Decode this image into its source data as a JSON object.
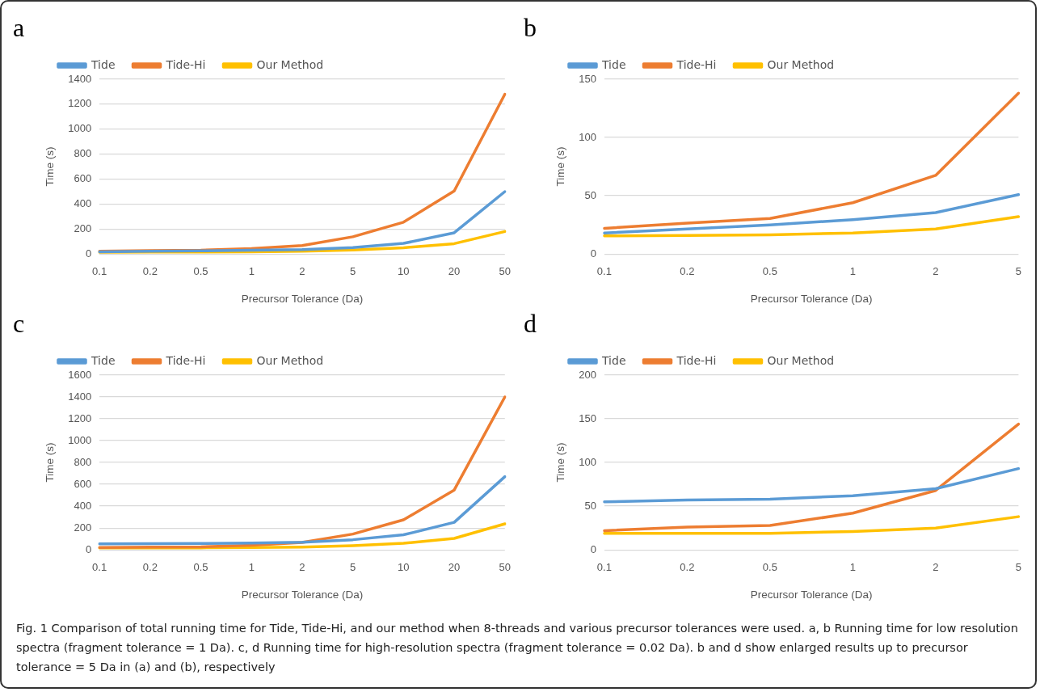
{
  "chart_data": [
    {
      "type": "line",
      "title": "a",
      "xlabel": "Precursor Tolerance (Da)",
      "ylabel": "Time (s)",
      "categories": [
        "0.1",
        "0.2",
        "0.5",
        "1",
        "2",
        "5",
        "10",
        "20",
        "50"
      ],
      "series": [
        {
          "name": "Tide",
          "color": "#5b9bd5",
          "values": [
            18,
            22,
            25,
            30,
            36,
            51,
            85,
            170,
            500
          ]
        },
        {
          "name": "Tide-Hi",
          "color": "#ed7d31",
          "values": [
            22,
            27,
            31,
            44,
            68,
            138,
            255,
            505,
            1280
          ]
        },
        {
          "name": "Our Method",
          "color": "#ffc000",
          "values": [
            15,
            16,
            16,
            18,
            22,
            32,
            50,
            83,
            180
          ]
        }
      ],
      "ylim": [
        0,
        1400
      ],
      "yticks": [
        0,
        200,
        400,
        600,
        800,
        1000,
        1200,
        1400
      ],
      "grid": "y",
      "legend": "top left",
      "marker": "none",
      "line_style": "solid"
    },
    {
      "type": "line",
      "title": "b",
      "xlabel": "Precursor Tolerance (Da)",
      "ylabel": "Time (s)",
      "categories": [
        "0.1",
        "0.2",
        "0.5",
        "1",
        "2",
        "5"
      ],
      "series": [
        {
          "name": "Tide",
          "color": "#5b9bd5",
          "values": [
            18,
            21.5,
            25,
            29.5,
            35.5,
            51
          ]
        },
        {
          "name": "Tide-Hi",
          "color": "#ed7d31",
          "values": [
            22,
            26.5,
            30.5,
            44,
            67.5,
            138
          ]
        },
        {
          "name": "Our Method",
          "color": "#ffc000",
          "values": [
            15.5,
            16,
            16.5,
            18,
            21.5,
            32
          ]
        }
      ],
      "ylim": [
        0,
        150
      ],
      "yticks": [
        0,
        50,
        100,
        150
      ],
      "grid": "y",
      "legend": "top left",
      "marker": "none",
      "line_style": "solid"
    },
    {
      "type": "line",
      "title": "c",
      "xlabel": "Precursor Tolerance (Da)",
      "ylabel": "Time (s)",
      "categories": [
        "0.1",
        "0.2",
        "0.5",
        "1",
        "2",
        "5",
        "10",
        "20",
        "50"
      ],
      "series": [
        {
          "name": "Tide",
          "color": "#5b9bd5",
          "values": [
            55,
            57,
            58,
            62,
            70,
            93,
            138,
            252,
            670
          ]
        },
        {
          "name": "Tide-Hi",
          "color": "#ed7d31",
          "values": [
            22,
            26,
            28,
            42,
            68,
            145,
            275,
            548,
            1400
          ]
        },
        {
          "name": "Our Method",
          "color": "#ffc000",
          "values": [
            18,
            19,
            19,
            21,
            25,
            38,
            60,
            105,
            238
          ]
        }
      ],
      "ylim": [
        0,
        1600
      ],
      "yticks": [
        0,
        200,
        400,
        600,
        800,
        1000,
        1200,
        1400,
        1600
      ],
      "grid": "y",
      "legend": "top left",
      "marker": "none",
      "line_style": "solid"
    },
    {
      "type": "line",
      "title": "d",
      "xlabel": "Precursor Tolerance (Da)",
      "ylabel": "Time (s)",
      "categories": [
        "0.1",
        "0.2",
        "0.5",
        "1",
        "2",
        "5"
      ],
      "series": [
        {
          "name": "Tide",
          "color": "#5b9bd5",
          "values": [
            55,
            57,
            58,
            62,
            70,
            93
          ]
        },
        {
          "name": "Tide-Hi",
          "color": "#ed7d31",
          "values": [
            22,
            26,
            28,
            42,
            68,
            144
          ]
        },
        {
          "name": "Our Method",
          "color": "#ffc000",
          "values": [
            19,
            19,
            19,
            21,
            25,
            38
          ]
        }
      ],
      "ylim": [
        0,
        200
      ],
      "yticks": [
        0,
        50,
        100,
        150,
        200
      ],
      "grid": "y",
      "legend": "top left",
      "marker": "none",
      "line_style": "solid",
      "annotations": [
        "Fig. 1 Comparison of total running time for Tide, Tide-Hi, and our method when 8-threads and various precursor tolerances were used. a, b Running time for low resolution spectra (fragment tolerance = 1 Da). c, d Running time for high-resolution spectra (fragment tolerance = 0.02 Da). b and d show enlarged results up to precursor tolerance = 5 Da in (a) and (b), respectively"
      ]
    }
  ]
}
